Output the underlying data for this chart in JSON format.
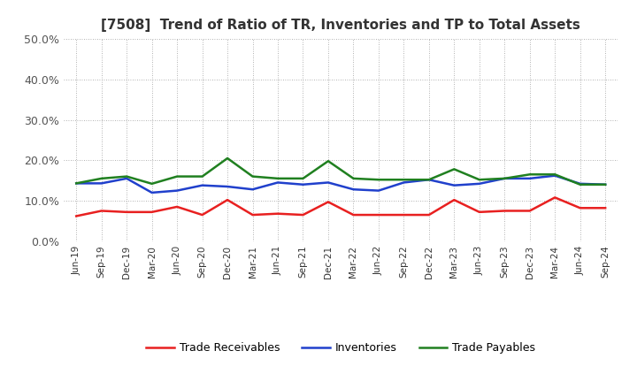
{
  "title": "[7508]  Trend of Ratio of TR, Inventories and TP to Total Assets",
  "x_labels": [
    "Jun-19",
    "Sep-19",
    "Dec-19",
    "Mar-20",
    "Jun-20",
    "Sep-20",
    "Dec-20",
    "Mar-21",
    "Jun-21",
    "Sep-21",
    "Dec-21",
    "Mar-22",
    "Jun-22",
    "Sep-22",
    "Dec-22",
    "Mar-23",
    "Jun-23",
    "Sep-23",
    "Dec-23",
    "Mar-24",
    "Jun-24",
    "Sep-24"
  ],
  "trade_receivables": [
    0.062,
    0.075,
    0.072,
    0.072,
    0.085,
    0.065,
    0.102,
    0.065,
    0.068,
    0.065,
    0.097,
    0.065,
    0.065,
    0.065,
    0.065,
    0.102,
    0.072,
    0.075,
    0.075,
    0.108,
    0.082,
    0.082
  ],
  "inventories": [
    0.143,
    0.143,
    0.155,
    0.12,
    0.125,
    0.138,
    0.135,
    0.128,
    0.145,
    0.14,
    0.145,
    0.128,
    0.125,
    0.145,
    0.152,
    0.138,
    0.142,
    0.155,
    0.155,
    0.162,
    0.142,
    0.14
  ],
  "trade_payables": [
    0.143,
    0.155,
    0.16,
    0.142,
    0.16,
    0.16,
    0.205,
    0.16,
    0.155,
    0.155,
    0.198,
    0.155,
    0.152,
    0.152,
    0.152,
    0.178,
    0.152,
    0.155,
    0.165,
    0.165,
    0.14,
    0.14
  ],
  "colors": {
    "trade_receivables": "#e82020",
    "inventories": "#2040cc",
    "trade_payables": "#208020"
  },
  "ylim": [
    0.0,
    0.5
  ],
  "yticks": [
    0.0,
    0.1,
    0.2,
    0.3,
    0.4,
    0.5
  ],
  "background_color": "#ffffff",
  "grid_color": "#999999",
  "legend_labels": [
    "Trade Receivables",
    "Inventories",
    "Trade Payables"
  ],
  "title_color": "#333333"
}
